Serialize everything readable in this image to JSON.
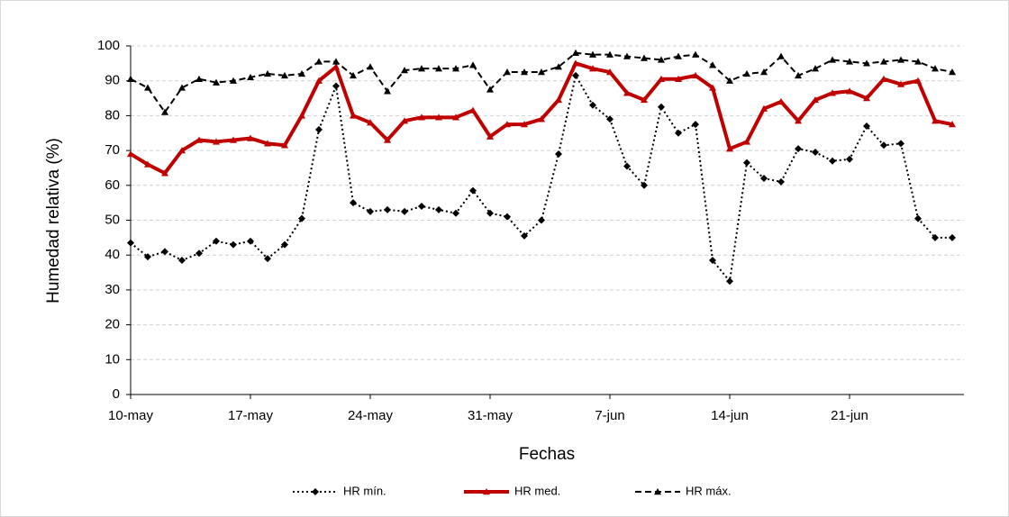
{
  "chart_data": {
    "type": "line",
    "x_label": "Fechas",
    "y_label": "Humedad relativa (%)",
    "categories": [
      "10-may",
      null,
      null,
      null,
      null,
      null,
      null,
      "17-may",
      null,
      null,
      null,
      null,
      null,
      null,
      "24-may",
      null,
      null,
      null,
      null,
      null,
      null,
      "31-may",
      null,
      null,
      null,
      null,
      null,
      null,
      "7-jun",
      null,
      null,
      null,
      null,
      null,
      null,
      "14-jun",
      null,
      null,
      null,
      null,
      null,
      null,
      "21-jun",
      null,
      null,
      null,
      null,
      null,
      null
    ],
    "ylim": [
      0,
      100
    ],
    "yticks": [
      0,
      10,
      20,
      30,
      40,
      50,
      60,
      70,
      80,
      90,
      100
    ],
    "grid": true,
    "legend": "bottom",
    "series": [
      {
        "name": "HR mín.",
        "color": "#000000",
        "style": "dotted",
        "marker": "diamond",
        "values": [
          43.5,
          39.5,
          41,
          38.5,
          40.5,
          44,
          43,
          44,
          39,
          43,
          50.5,
          76,
          88.5,
          55,
          52.5,
          53,
          52.5,
          54,
          53,
          52,
          58.5,
          52,
          51,
          45.5,
          50,
          69,
          91.5,
          83,
          79,
          65.5,
          60,
          82.5,
          75,
          77.5,
          38.5,
          32.5,
          66.5,
          62,
          61,
          70.5,
          69.5,
          67,
          67.5,
          77,
          71.5,
          72,
          50.5,
          45,
          45
        ]
      },
      {
        "name": "HR med.",
        "color": "#c00000",
        "style": "solid",
        "marker": "triangle",
        "values": [
          69,
          66,
          63.5,
          70,
          73,
          72.5,
          73,
          73.5,
          72,
          71.5,
          80,
          90,
          94,
          80,
          78,
          73,
          78.5,
          79.5,
          79.5,
          79.5,
          81.5,
          74,
          77.5,
          77.5,
          79,
          84.5,
          95,
          93.5,
          92.5,
          86.5,
          84.5,
          90.5,
          90.5,
          91.5,
          88,
          70.5,
          72.5,
          82,
          84,
          78.5,
          84.5,
          86.5,
          87,
          85,
          90.5,
          89,
          90,
          78.5,
          77.5
        ]
      },
      {
        "name": "HR máx.",
        "color": "#000000",
        "style": "dashed",
        "marker": "triangle",
        "values": [
          90.5,
          88,
          81,
          88,
          90.5,
          89.5,
          90,
          91,
          92,
          91.5,
          92,
          95.5,
          95.5,
          91.5,
          94,
          87,
          93,
          93.5,
          93.5,
          93.5,
          94.5,
          87.5,
          92.5,
          92.5,
          92.5,
          94,
          98,
          97.5,
          97.5,
          97,
          96.5,
          96,
          97,
          97.5,
          94.5,
          90,
          92,
          92.5,
          97,
          91.5,
          93.5,
          96,
          95.5,
          95,
          95.5,
          96,
          95.5,
          93.5,
          92.5
        ]
      }
    ]
  }
}
